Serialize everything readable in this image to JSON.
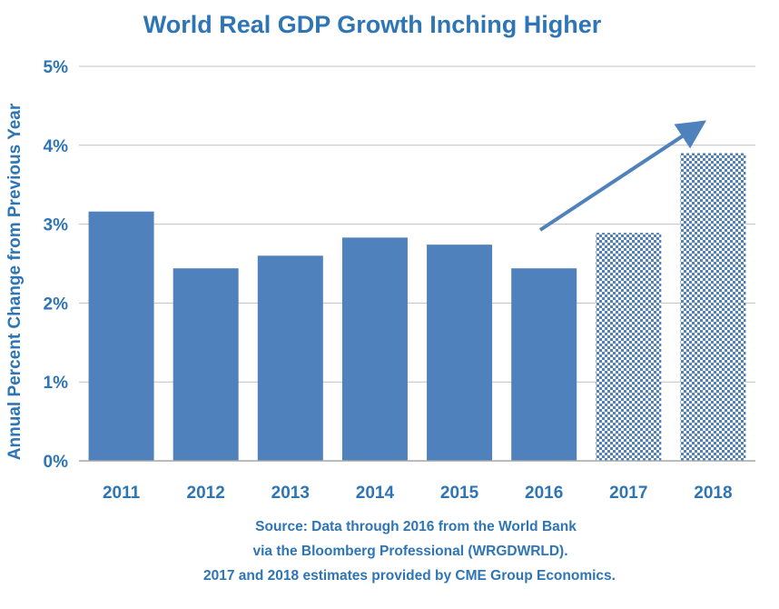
{
  "chart_data": {
    "type": "bar",
    "title": "World Real GDP Growth Inching Higher",
    "xlabel": "",
    "ylabel": "Annual Percent Change from Previous Year",
    "categories": [
      "2011",
      "2012",
      "2013",
      "2014",
      "2015",
      "2016",
      "2017",
      "2018"
    ],
    "values": [
      3.16,
      2.44,
      2.6,
      2.83,
      2.74,
      2.44,
      2.89,
      3.9
    ],
    "estimate_flags": [
      false,
      false,
      false,
      false,
      false,
      false,
      true,
      true
    ],
    "ylim": [
      0,
      5
    ],
    "yticks": [
      0,
      1,
      2,
      3,
      4,
      5
    ],
    "ytick_labels": [
      "0%",
      "1%",
      "2%",
      "3%",
      "4%",
      "5%"
    ],
    "grid": true,
    "legend": "none",
    "bar_color": "#4f81bd",
    "estimate_pattern": "checkered",
    "annotation": "upward-trend-arrow",
    "source_lines": [
      "Source:  Data through 2016 from the World Bank",
      "via the Bloomberg Professional (WRGDWRLD).",
      "2017 and 2018 estimates provided by CME Group Economics."
    ]
  },
  "colors": {
    "text": "#2e75b6",
    "bar": "#4f81bd",
    "grid": "#c0c0c0",
    "axis": "#a6a6a6"
  }
}
